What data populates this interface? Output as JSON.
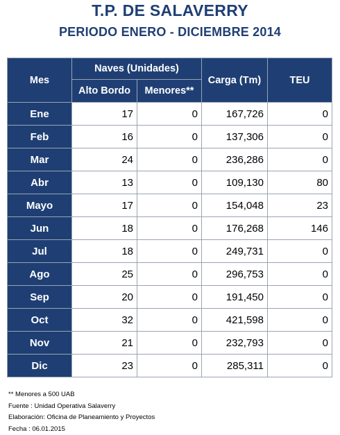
{
  "title": "T.P. DE SALAVERRY",
  "subtitle": "PERIODO ENERO - DICIEMBRE 2014",
  "table": {
    "headers": {
      "mes": "Mes",
      "naves": "Naves (Unidades)",
      "alto_bordo": "Alto Bordo",
      "menores": "Menores**",
      "carga": "Carga (Tm)",
      "teu": "TEU"
    },
    "rows": [
      {
        "mes": "Ene",
        "alto_bordo": "17",
        "menores": "0",
        "carga": "167,726",
        "teu": "0"
      },
      {
        "mes": "Feb",
        "alto_bordo": "16",
        "menores": "0",
        "carga": "137,306",
        "teu": "0"
      },
      {
        "mes": "Mar",
        "alto_bordo": "24",
        "menores": "0",
        "carga": "236,286",
        "teu": "0"
      },
      {
        "mes": "Abr",
        "alto_bordo": "13",
        "menores": "0",
        "carga": "109,130",
        "teu": "80"
      },
      {
        "mes": "Mayo",
        "alto_bordo": "17",
        "menores": "0",
        "carga": "154,048",
        "teu": "23"
      },
      {
        "mes": "Jun",
        "alto_bordo": "18",
        "menores": "0",
        "carga": "176,268",
        "teu": "146"
      },
      {
        "mes": "Jul",
        "alto_bordo": "18",
        "menores": "0",
        "carga": "249,731",
        "teu": "0"
      },
      {
        "mes": "Ago",
        "alto_bordo": "25",
        "menores": "0",
        "carga": "296,753",
        "teu": "0"
      },
      {
        "mes": "Sep",
        "alto_bordo": "20",
        "menores": "0",
        "carga": "191,450",
        "teu": "0"
      },
      {
        "mes": "Oct",
        "alto_bordo": "32",
        "menores": "0",
        "carga": "421,598",
        "teu": "0"
      },
      {
        "mes": "Nov",
        "alto_bordo": "21",
        "menores": "0",
        "carga": "232,793",
        "teu": "0"
      },
      {
        "mes": "Dic",
        "alto_bordo": "23",
        "menores": "0",
        "carga": "285,311",
        "teu": "0"
      }
    ]
  },
  "notes": {
    "menores": "** Menores a 500 UAB",
    "fuente": "Fuente : Unidad Operativa Salaverry",
    "elaboracion": "Elaboración: Oficina de Planeamiento y Proyectos",
    "fecha": "Fecha : 06.01.2015"
  },
  "colors": {
    "header_bg": "#1f3f74",
    "header_text": "#ffffff",
    "title_text": "#1f3f74"
  }
}
